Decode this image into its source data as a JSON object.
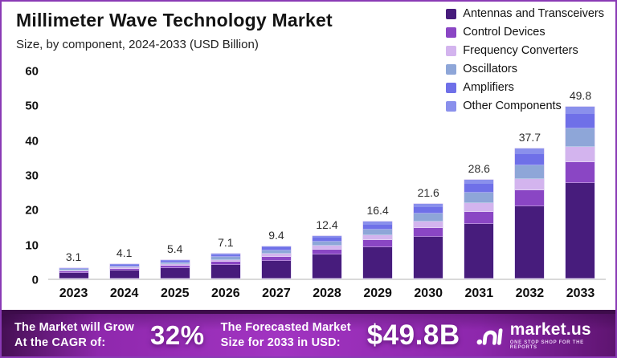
{
  "frame": {
    "border_color": "#8a3ab5",
    "background": "#ffffff"
  },
  "header": {
    "title": "Millimeter Wave Technology Market",
    "subtitle": "Size, by component, 2024-2033 (USD Billion)"
  },
  "chart_data": {
    "type": "bar",
    "stacked": true,
    "title": "Millimeter Wave Technology Market",
    "xlabel": "",
    "ylabel": "",
    "ylim": [
      0,
      60
    ],
    "yticks": [
      0,
      10,
      20,
      30,
      40,
      50,
      60
    ],
    "grid": false,
    "legend_position": "top-right",
    "categories": [
      "2023",
      "2024",
      "2025",
      "2026",
      "2027",
      "2028",
      "2029",
      "2030",
      "2031",
      "2032",
      "2033"
    ],
    "totals": [
      3.1,
      4.1,
      5.4,
      7.1,
      9.4,
      12.4,
      16.4,
      21.6,
      28.6,
      37.7,
      49.8
    ],
    "bar_labels": [
      "3.1",
      "4.1",
      "5.4",
      "7.1",
      "9.4",
      "12.4",
      "16.4",
      "21.6",
      "28.6",
      "37.7",
      "49.8"
    ],
    "series": [
      {
        "name": "Antennas and Transceivers",
        "color": "#471c7c",
        "values": [
          1.72,
          2.29,
          3.0,
          3.95,
          5.22,
          6.89,
          9.11,
          12.02,
          15.91,
          20.96,
          27.69
        ]
      },
      {
        "name": "Control Devices",
        "color": "#8a46c4",
        "values": [
          0.37,
          0.49,
          0.65,
          0.85,
          1.13,
          1.49,
          1.97,
          2.59,
          3.43,
          4.52,
          5.98
        ]
      },
      {
        "name": "Frequency Converters",
        "color": "#d3b4ee",
        "values": [
          0.28,
          0.37,
          0.49,
          0.64,
          0.85,
          1.12,
          1.48,
          1.94,
          2.57,
          3.39,
          4.48
        ]
      },
      {
        "name": "Oscillators",
        "color": "#8ea6d8",
        "values": [
          0.33,
          0.43,
          0.57,
          0.75,
          1.0,
          1.31,
          1.74,
          2.29,
          3.03,
          4.0,
          5.28
        ]
      },
      {
        "name": "Amplifiers",
        "color": "#6f70e8",
        "values": [
          0.26,
          0.34,
          0.45,
          0.6,
          0.79,
          1.04,
          1.38,
          1.81,
          2.4,
          3.17,
          4.18
        ]
      },
      {
        "name": "Other Components",
        "color": "#8a90ec",
        "values": [
          0.14,
          0.18,
          0.24,
          0.31,
          0.41,
          0.55,
          0.72,
          0.95,
          1.26,
          1.66,
          2.19
        ]
      }
    ]
  },
  "banner": {
    "cagr_label_line1": "The Market will Grow",
    "cagr_label_line2": "At the CAGR of:",
    "cagr_value": "32%",
    "forecast_label_line1": "The Forecasted Market",
    "forecast_label_line2": "Size for 2033 in USD:",
    "forecast_value": "$49.8B",
    "logo_text": "market.us",
    "logo_tagline": "One Stop Shop For The Reports"
  }
}
